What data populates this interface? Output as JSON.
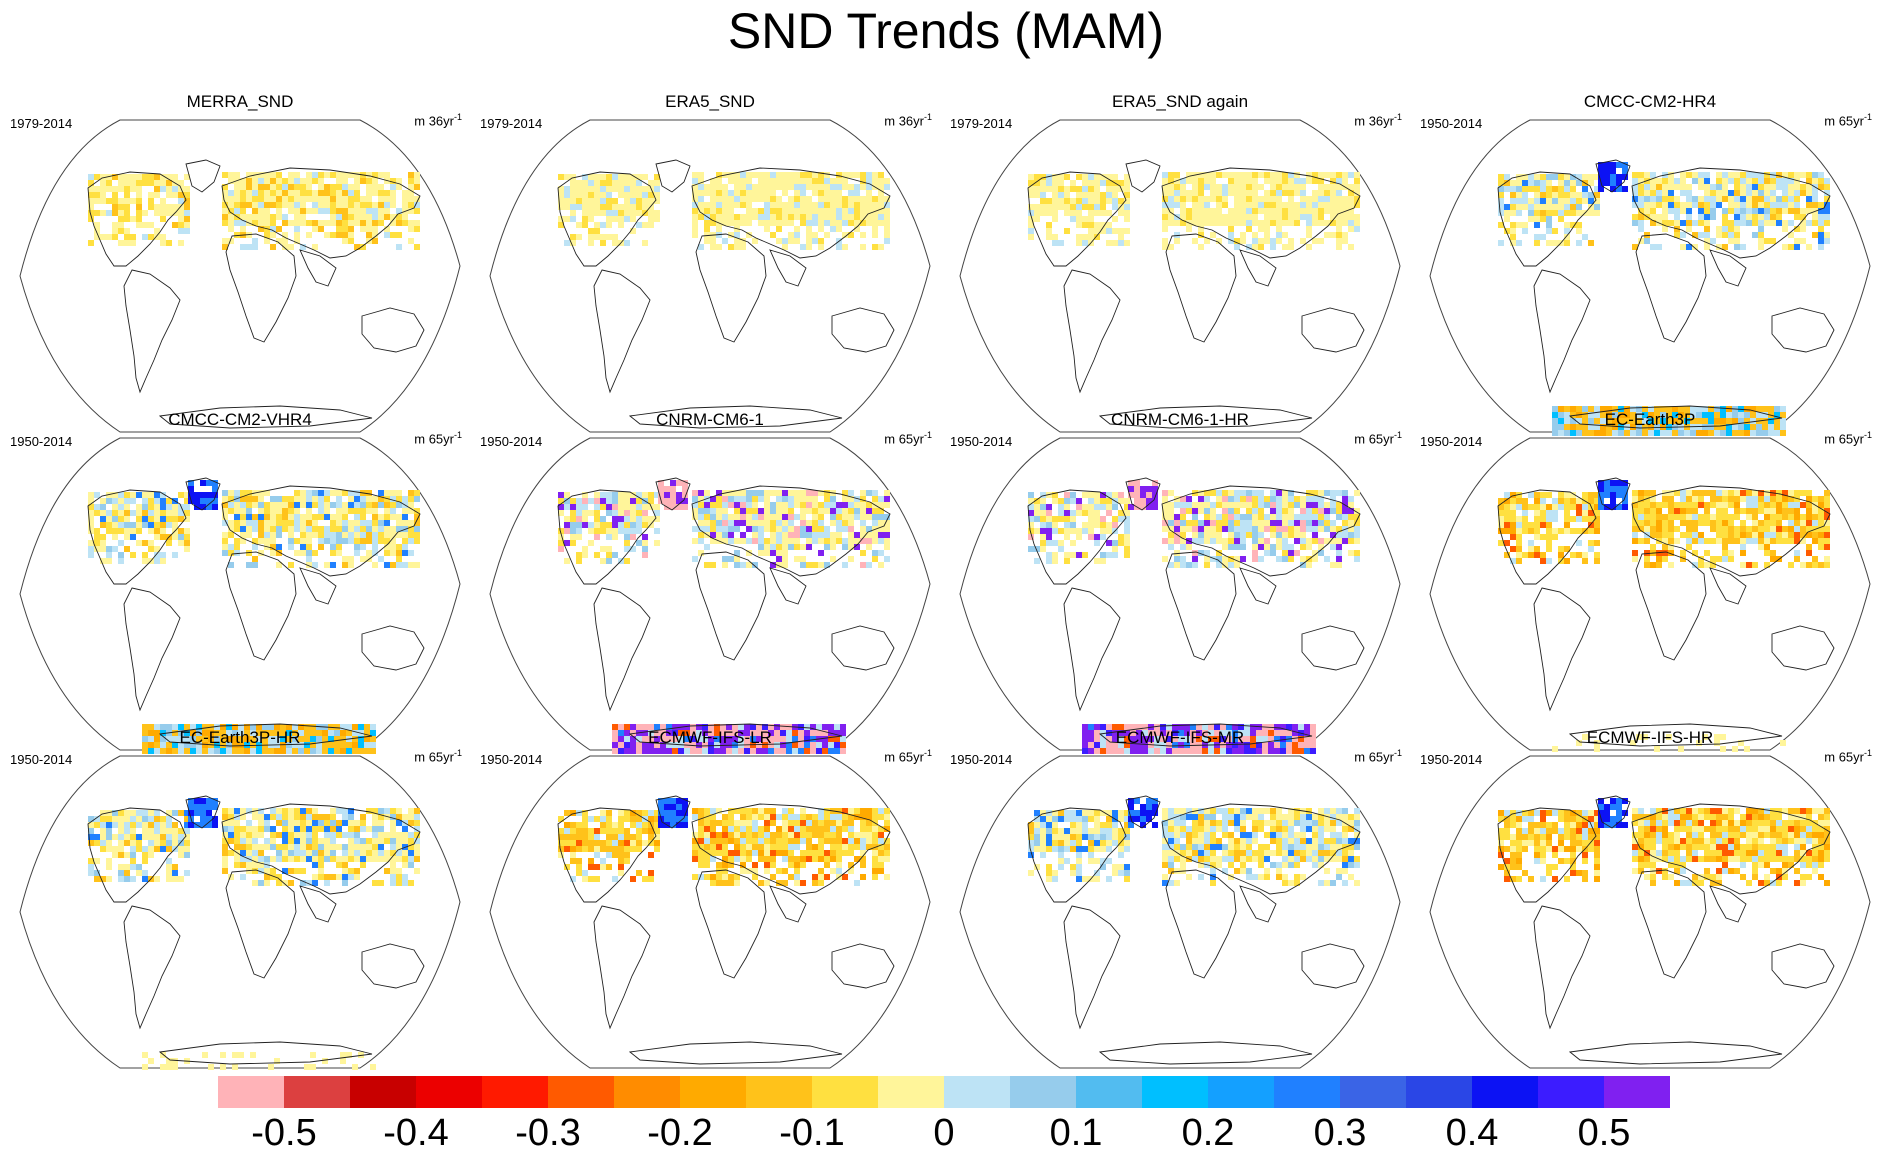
{
  "title": "SND Trends (MAM)",
  "panels": [
    {
      "name": "MERRA_SND",
      "period": "1979-2014",
      "units_prefix": "m 36yr",
      "units_exp": "-1",
      "pattern": "obs-a",
      "antarctic": "none"
    },
    {
      "name": "ERA5_SND",
      "period": "1979-2014",
      "units_prefix": "m 36yr",
      "units_exp": "-1",
      "pattern": "obs-b",
      "antarctic": "none"
    },
    {
      "name": "ERA5_SND again",
      "period": "1979-2014",
      "units_prefix": "m 36yr",
      "units_exp": "-1",
      "pattern": "obs-b",
      "antarctic": "none"
    },
    {
      "name": "CMCC-CM2-HR4",
      "period": "1950-2014",
      "units_prefix": "m 65yr",
      "units_exp": "-1",
      "pattern": "model-mixed",
      "antarctic": "mixed"
    },
    {
      "name": "CMCC-CM2-VHR4",
      "period": "1950-2014",
      "units_prefix": "m 65yr",
      "units_exp": "-1",
      "pattern": "model-mixed",
      "antarctic": "mixed"
    },
    {
      "name": "CNRM-CM6-1",
      "period": "1950-2014",
      "units_prefix": "m 65yr",
      "units_exp": "-1",
      "pattern": "model-cnrm",
      "antarctic": "extreme"
    },
    {
      "name": "CNRM-CM6-1-HR",
      "period": "1950-2014",
      "units_prefix": "m 65yr",
      "units_exp": "-1",
      "pattern": "model-cnrm",
      "antarctic": "extreme"
    },
    {
      "name": "EC-Earth3P",
      "period": "1950-2014",
      "units_prefix": "m 65yr",
      "units_exp": "-1",
      "pattern": "model-warm",
      "antarctic": "edge"
    },
    {
      "name": "EC-Earth3P-HR",
      "period": "1950-2014",
      "units_prefix": "m 65yr",
      "units_exp": "-1",
      "pattern": "model-mixed",
      "antarctic": "edge"
    },
    {
      "name": "ECMWF-IFS-LR",
      "period": "1950-2014",
      "units_prefix": "m 65yr",
      "units_exp": "-1",
      "pattern": "model-warm",
      "antarctic": "none"
    },
    {
      "name": "ECMWF-IFS-MR",
      "period": "1950-2014",
      "units_prefix": "m 65yr",
      "units_exp": "-1",
      "pattern": "model-mixed",
      "antarctic": "none"
    },
    {
      "name": "ECMWF-IFS-HR",
      "period": "1950-2014",
      "units_prefix": "m 65yr",
      "units_exp": "-1",
      "pattern": "model-warm",
      "antarctic": "none"
    }
  ],
  "colorbar": {
    "colors": [
      "#ffb3b8",
      "#dc4040",
      "#c80000",
      "#ec0000",
      "#ff1a00",
      "#ff5a00",
      "#ff8c00",
      "#ffaa00",
      "#ffc21a",
      "#ffe040",
      "#fff59a",
      "#bde3f5",
      "#96ccec",
      "#52bcf0",
      "#00bfff",
      "#14a0ff",
      "#2080ff",
      "#3a64e6",
      "#2a46e6",
      "#0c12f4",
      "#3c1cff",
      "#8020f0"
    ],
    "labels": [
      "-0.5",
      "-0.4",
      "-0.3",
      "-0.2",
      "-0.1",
      "0",
      "0.1",
      "0.2",
      "0.3",
      "0.4",
      "0.5"
    ]
  }
}
